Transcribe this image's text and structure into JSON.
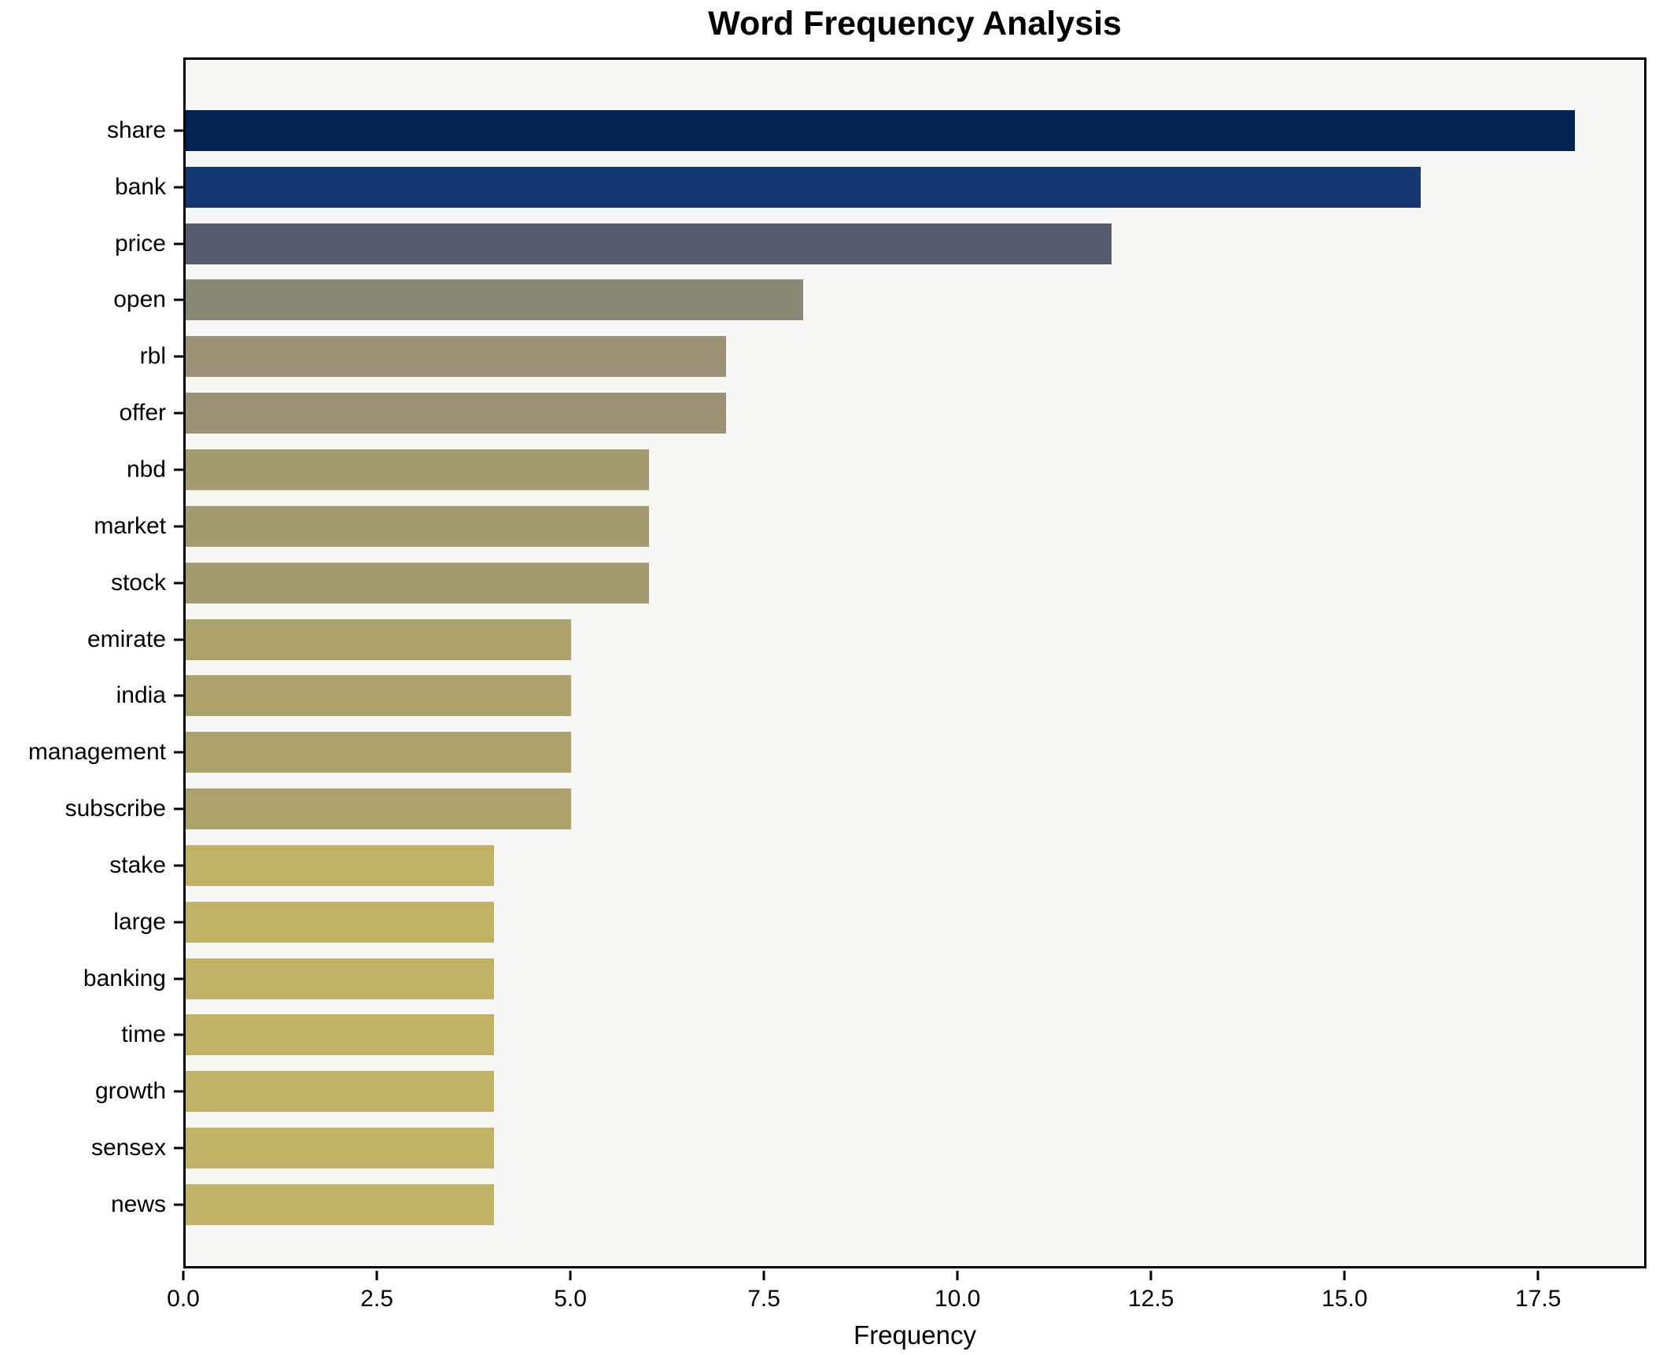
{
  "chart_data": {
    "type": "bar",
    "orientation": "horizontal",
    "title": "Word Frequency Analysis",
    "xlabel": "Frequency",
    "ylabel": "",
    "categories": [
      "share",
      "bank",
      "price",
      "open",
      "rbl",
      "offer",
      "nbd",
      "market",
      "stock",
      "emirate",
      "india",
      "management",
      "subscribe",
      "stake",
      "large",
      "banking",
      "time",
      "growth",
      "sensex",
      "news"
    ],
    "values": [
      18,
      16,
      12,
      8,
      7,
      7,
      6,
      6,
      6,
      5,
      5,
      5,
      5,
      4,
      4,
      4,
      4,
      4,
      4,
      4
    ],
    "bar_colors": [
      "#02234e",
      "#173770",
      "#565c6c",
      "#898776",
      "#9a9176",
      "#9a9176",
      "#a49b71",
      "#a49b71",
      "#a49b71",
      "#aca26c",
      "#aca26c",
      "#aca26c",
      "#aca26c",
      "#c2b266",
      "#c2b266",
      "#c2b266",
      "#c2b266",
      "#c2b266",
      "#c2b266",
      "#c2b266"
    ],
    "xlim": [
      0,
      18.9
    ],
    "x_ticks": [
      0,
      2.5,
      5,
      7.5,
      10,
      12.5,
      15,
      17.5
    ],
    "x_tick_labels": [
      "0.0",
      "2.5",
      "5.0",
      "7.5",
      "10.0",
      "12.5",
      "15.0",
      "17.5"
    ],
    "grid": false,
    "legend": null,
    "plot_background": "#f7f7f5",
    "figure_background": "#ffffff",
    "spine_color": "#000000"
  }
}
